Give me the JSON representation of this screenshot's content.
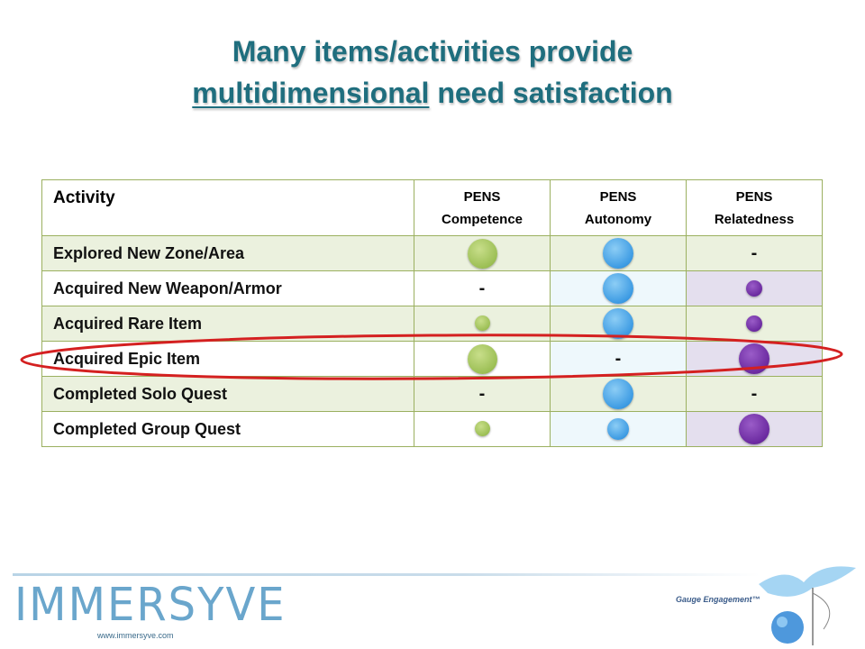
{
  "title": {
    "line1": "Many items/activities provide",
    "line2_underlined": "multidimensional",
    "line2_rest": " need satisfaction"
  },
  "table": {
    "header": {
      "activity": "Activity",
      "col1_line1": "PENS",
      "col1_line2": "Competence",
      "col2_line1": "PENS",
      "col2_line2": "Autonomy",
      "col3_line1": "PENS",
      "col3_line2": "Relatedness"
    },
    "rows": [
      {
        "activity": "Explored New Zone/Area"
      },
      {
        "activity": "Acquired New Weapon/Armor"
      },
      {
        "activity": "Acquired Rare Item"
      },
      {
        "activity": "Acquired Epic Item"
      },
      {
        "activity": "Completed Solo Quest"
      },
      {
        "activity": "Completed Group Quest"
      }
    ],
    "dash": "-"
  },
  "colors": {
    "competence": "#9cbf55",
    "autonomy": "#3d9be3",
    "relatedness": "#6b2aa0",
    "highlight_ellipse": "#d42020",
    "title": "#1f6e7e"
  },
  "footer": {
    "logo": "IMMERSYVE",
    "url": "www.immersyve.com",
    "tagline": "Gauge Engagement™"
  }
}
